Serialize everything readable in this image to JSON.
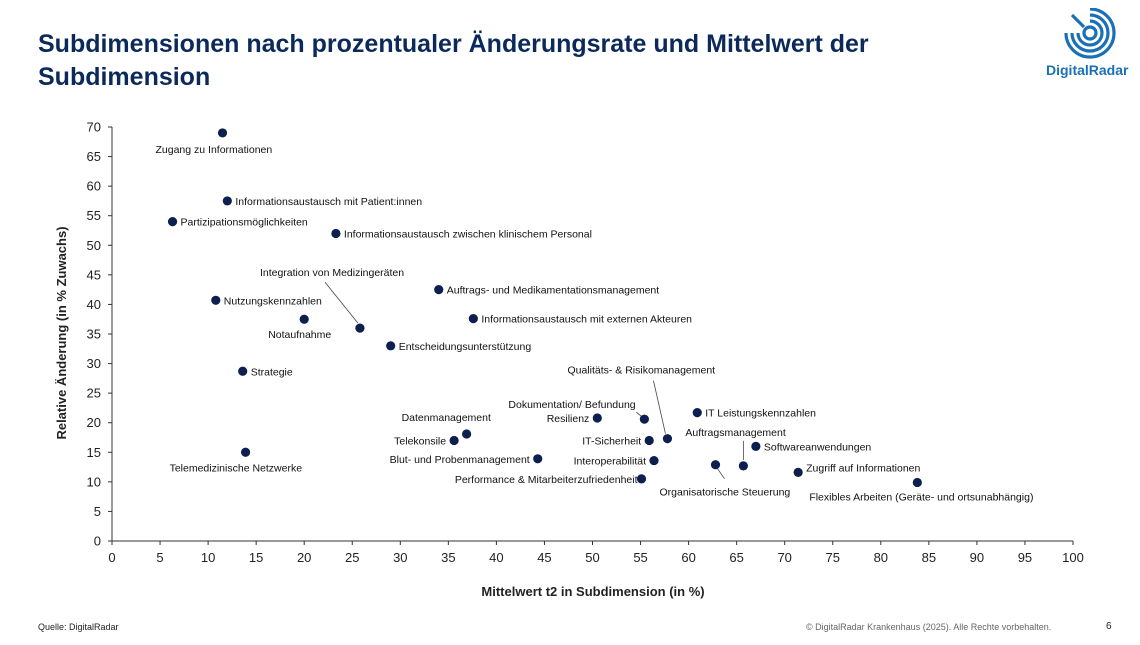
{
  "title": "Subdimensionen nach prozentualer Änderungsrate und Mittelwert der Subdimension",
  "logo": {
    "text": "DigitalRadar",
    "icon": "radar-logo-icon",
    "color": "#1a6fb7"
  },
  "footer": {
    "source": "Quelle: DigitalRadar",
    "copyright": "© DigitalRadar Krankenhaus (2025). Alle Rechte vorbehalten.",
    "page": "6"
  },
  "colors": {
    "title": "#0b2a5b",
    "point": "#0d1f4f",
    "axis": "#333333"
  },
  "chart_data": {
    "type": "scatter",
    "title": "",
    "xlabel": "Mittelwert t2 in Subdimension (in %)",
    "ylabel": "Relative Änderung (in % Zuwachs)",
    "xlim": [
      0,
      100
    ],
    "ylim": [
      0,
      70
    ],
    "xticks": [
      0,
      5,
      10,
      15,
      20,
      25,
      30,
      35,
      40,
      45,
      50,
      55,
      60,
      65,
      70,
      75,
      80,
      85,
      90,
      95,
      100
    ],
    "yticks": [
      0,
      5,
      10,
      15,
      20,
      25,
      30,
      35,
      40,
      45,
      50,
      55,
      60,
      65,
      70
    ],
    "grid": false,
    "points": [
      {
        "label": "Zugang zu Informationen",
        "x": 11.5,
        "y": 69
      },
      {
        "label": "Informationsaustausch mit Patient:innen",
        "x": 12,
        "y": 57.5
      },
      {
        "label": "Partizipationsmöglichkeiten",
        "x": 6.3,
        "y": 54
      },
      {
        "label": "Informationsaustausch zwischen klinischem Personal",
        "x": 23.3,
        "y": 52
      },
      {
        "label": "Nutzungskennzahlen",
        "x": 10.8,
        "y": 40.7
      },
      {
        "label": "Notaufnahme",
        "x": 20,
        "y": 37.5
      },
      {
        "label": "Integration von Medizingeräten",
        "x": 25.8,
        "y": 36
      },
      {
        "label": "Auftrags- und Medikamentationsmanagement",
        "x": 34,
        "y": 42.5
      },
      {
        "label": "Informationsaustausch mit externen Akteuren",
        "x": 37.6,
        "y": 37.6
      },
      {
        "label": "Entscheidungsunterstützung",
        "x": 29,
        "y": 33
      },
      {
        "label": "Strategie",
        "x": 13.6,
        "y": 28.7
      },
      {
        "label": "Telemedizinische Netzwerke",
        "x": 13.9,
        "y": 15
      },
      {
        "label": "Datenmanagement",
        "x": 36.9,
        "y": 18.1
      },
      {
        "label": "Telekonsile",
        "x": 35.6,
        "y": 17
      },
      {
        "label": "Blut- und Probenmanagement",
        "x": 44.3,
        "y": 13.9
      },
      {
        "label": "Performance & Mitarbeiterzufriedenheit",
        "x": 55.1,
        "y": 10.5
      },
      {
        "label": "Resilienz",
        "x": 50.5,
        "y": 20.8
      },
      {
        "label": "Dokumentation/ Befundung",
        "x": 55.4,
        "y": 20.6
      },
      {
        "label": "IT-Sicherheit",
        "x": 55.9,
        "y": 17
      },
      {
        "label": "Qualitäts- & Risikomanagement",
        "x": 57.8,
        "y": 17.3
      },
      {
        "label": "Interoperabilität",
        "x": 56.4,
        "y": 13.6
      },
      {
        "label": "Organisatorische Steuerung",
        "x": 62.8,
        "y": 12.9
      },
      {
        "label": "IT Leistungskennzahlen",
        "x": 60.9,
        "y": 21.7
      },
      {
        "label": "Auftragsmanagement",
        "x": 65.7,
        "y": 12.7
      },
      {
        "label": "Softwareanwendungen",
        "x": 67,
        "y": 16
      },
      {
        "label": "Zugriff auf Informationen",
        "x": 71.4,
        "y": 11.6
      },
      {
        "label": "Flexibles Arbeiten (Geräte- und ortsunabhängig)",
        "x": 83.8,
        "y": 9.9
      }
    ]
  }
}
